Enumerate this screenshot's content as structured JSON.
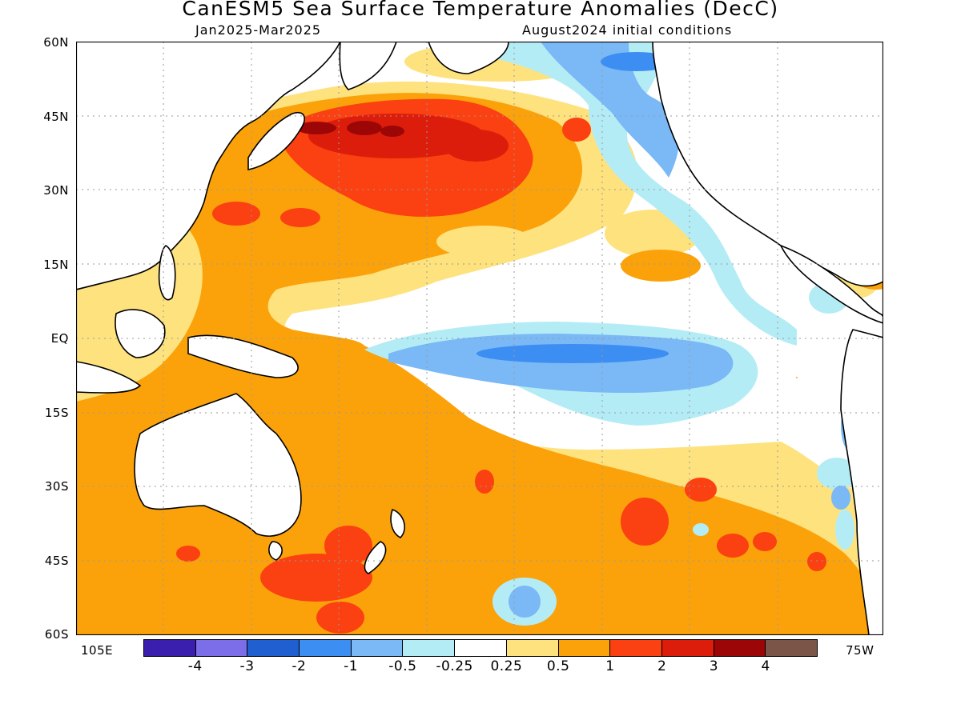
{
  "header": {
    "title": "CanESM5 Sea Surface Temperature Anomalies (DecC)",
    "subtitle_left": "Jan2025-Mar2025",
    "subtitle_right": "August2024 initial conditions"
  },
  "axes": {
    "lat_labels": [
      "60N",
      "45N",
      "30N",
      "15N",
      "EQ",
      "15S",
      "30S",
      "45S",
      "60S"
    ],
    "lon_label_west": "105E",
    "lon_label_east": "75W"
  },
  "colorbar": {
    "colors": [
      "#3a1fae",
      "#7b6ee8",
      "#1f5fd0",
      "#3c8ef2",
      "#7ab8f6",
      "#b4ecf6",
      "#ffffff",
      "#fde27e",
      "#fba20b",
      "#fb4011",
      "#dc1d0b",
      "#9c0606",
      "#7a5548"
    ],
    "labels": [
      "-4",
      "-3",
      "-2",
      "-1",
      "-0.5",
      "-0.25",
      "0.25",
      "0.5",
      "1",
      "2",
      "3",
      "4"
    ]
  }
}
